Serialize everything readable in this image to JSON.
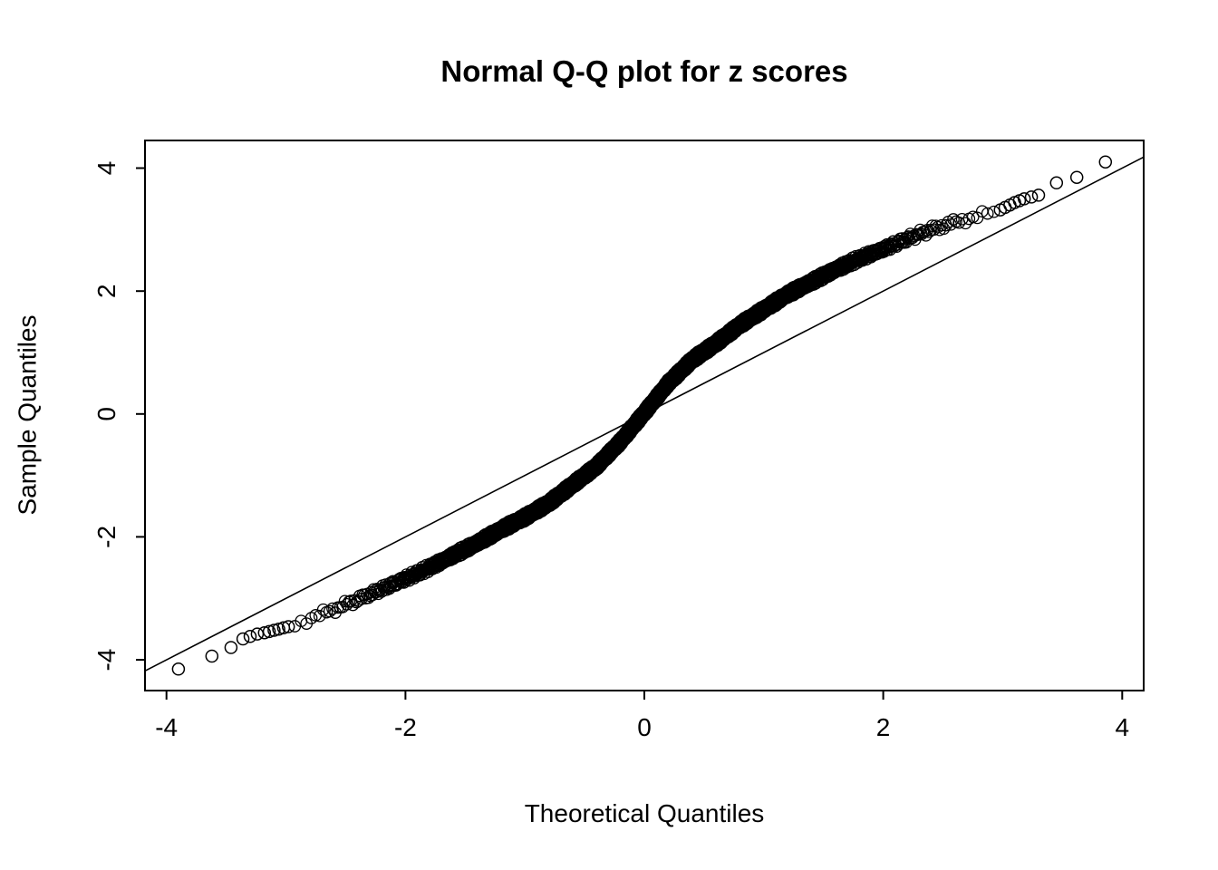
{
  "chart_data": {
    "type": "scatter",
    "chart_kind": "normal-qq-plot",
    "title": "Normal Q-Q plot for z scores",
    "xlabel": "Theoretical Quantiles",
    "ylabel": "Sample Quantiles",
    "xlim": [
      -4.18,
      4.18
    ],
    "ylim": [
      -4.5,
      4.45
    ],
    "x_ticks": [
      -4,
      -2,
      0,
      2,
      4
    ],
    "y_ticks": [
      -4,
      -2,
      0,
      2,
      4
    ],
    "grid": false,
    "legend": false,
    "marker": "open-circle",
    "marker_color": "#000000",
    "reference_line": {
      "slope": 1,
      "intercept": 0
    },
    "approx_n_points": 3200,
    "dense_band_range": [
      -2.95,
      2.95
    ],
    "qq_curve": {
      "theoretical": [
        -3.9,
        -3.62,
        -3.46,
        -3.36,
        -3.3,
        -3.24,
        -3.18,
        -3.14,
        -3.1,
        -3.06,
        -3.02,
        -2.98,
        -2.95,
        -2.8,
        -2.6,
        -2.4,
        -2.2,
        -2.0,
        -1.8,
        -1.6,
        -1.4,
        -1.2,
        -1.0,
        -0.8,
        -0.6,
        -0.4,
        -0.2,
        0.0,
        0.2,
        0.4,
        0.6,
        0.8,
        1.0,
        1.2,
        1.4,
        1.6,
        1.8,
        2.0,
        2.2,
        2.4,
        2.6,
        2.8,
        2.95,
        2.98,
        3.02,
        3.06,
        3.1,
        3.14,
        3.18,
        3.24,
        3.3,
        3.45,
        3.62,
        3.86
      ],
      "sample": [
        -4.15,
        -3.94,
        -3.8,
        -3.66,
        -3.62,
        -3.58,
        -3.56,
        -3.54,
        -3.52,
        -3.5,
        -3.48,
        -3.46,
        -3.44,
        -3.33,
        -3.18,
        -3.02,
        -2.85,
        -2.68,
        -2.5,
        -2.3,
        -2.1,
        -1.88,
        -1.68,
        -1.45,
        -1.15,
        -0.85,
        -0.45,
        0.02,
        0.5,
        0.88,
        1.15,
        1.45,
        1.7,
        1.95,
        2.15,
        2.35,
        2.53,
        2.68,
        2.85,
        3.0,
        3.12,
        3.22,
        3.3,
        3.32,
        3.36,
        3.4,
        3.44,
        3.47,
        3.5,
        3.53,
        3.56,
        3.76,
        3.85,
        4.1
      ]
    }
  }
}
